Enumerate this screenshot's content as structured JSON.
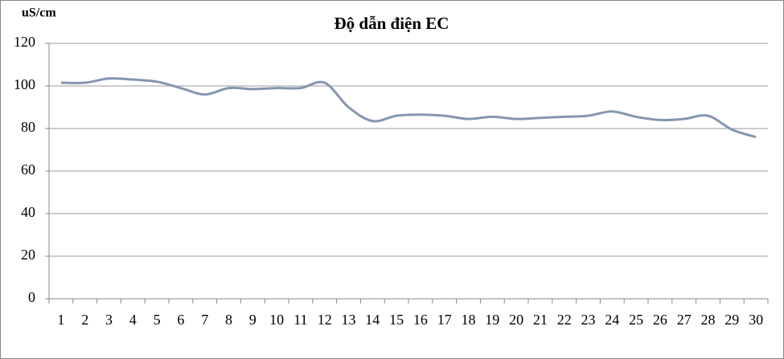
{
  "chart_data": {
    "type": "line",
    "title": "Độ dẫn  điện EC",
    "y_label": "uS/cm",
    "categories": [
      "1",
      "2",
      "3",
      "4",
      "5",
      "6",
      "7",
      "8",
      "9",
      "10",
      "11",
      "12",
      "13",
      "14",
      "15",
      "16",
      "17",
      "18",
      "19",
      "20",
      "21",
      "22",
      "23",
      "24",
      "25",
      "26",
      "27",
      "28",
      "29",
      "30"
    ],
    "series": [
      {
        "color": "#8496b0",
        "values": [
          101.5,
          101.5,
          103.5,
          103,
          102,
          99,
          96,
          99,
          98.5,
          99,
          99,
          101.5,
          90,
          83.5,
          86,
          86.5,
          86,
          84.5,
          85.5,
          84.5,
          85,
          85.5,
          86,
          88,
          85.5,
          84,
          84.5,
          86,
          79.5,
          76
        ]
      }
    ],
    "ylim": [
      0,
      120
    ],
    "yticks": [
      0,
      20,
      40,
      60,
      80,
      100,
      120
    ],
    "grid": true
  }
}
